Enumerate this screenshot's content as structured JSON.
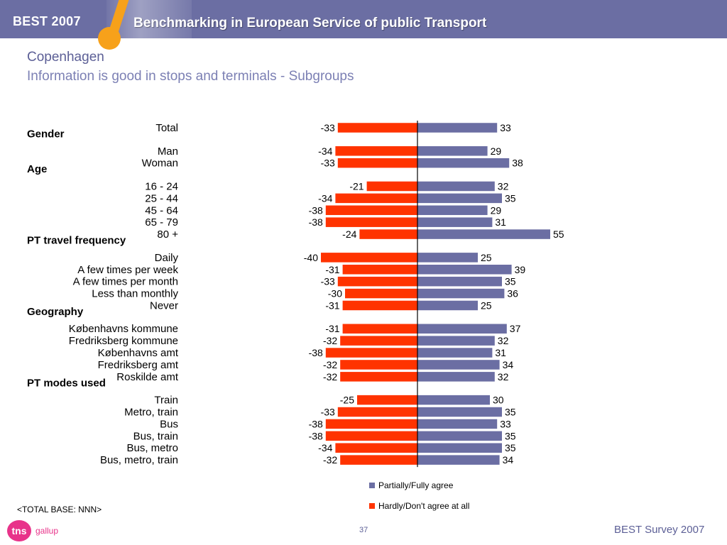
{
  "header": {
    "brand": "BEST 2007",
    "subtitle": "Benchmarking in European Service of public Transport"
  },
  "slide": {
    "title": "Copenhagen",
    "subtitle": "Information is good in stops and terminals - Subgroups"
  },
  "chart_data": {
    "type": "bar",
    "orientation": "horizontal-diverging",
    "grid": false,
    "series": [
      {
        "name": "Partially/Fully agree",
        "color": "#6b6ea3"
      },
      {
        "name": "Hardly/Don't agree at all",
        "color": "#ff3300"
      }
    ],
    "legend_position": "bottom",
    "groups": [
      {
        "label": "",
        "rows": [
          {
            "label": "Total",
            "neg": -33,
            "pos": 33
          }
        ]
      },
      {
        "label": "Gender",
        "rows": [
          {
            "label": "Man",
            "neg": -34,
            "pos": 29
          },
          {
            "label": "Woman",
            "neg": -33,
            "pos": 38
          }
        ]
      },
      {
        "label": "Age",
        "rows": [
          {
            "label": "16 - 24",
            "neg": -21,
            "pos": 32
          },
          {
            "label": "25 - 44",
            "neg": -34,
            "pos": 35
          },
          {
            "label": "45 - 64",
            "neg": -38,
            "pos": 29
          },
          {
            "label": "65 - 79",
            "neg": -38,
            "pos": 31
          },
          {
            "label": "80 +",
            "neg": -24,
            "pos": 55
          }
        ]
      },
      {
        "label": "PT travel frequency",
        "rows": [
          {
            "label": "Daily",
            "neg": -40,
            "pos": 25
          },
          {
            "label": "A few times per week",
            "neg": -31,
            "pos": 39
          },
          {
            "label": "A few times per month",
            "neg": -33,
            "pos": 35
          },
          {
            "label": "Less than monthly",
            "neg": -30,
            "pos": 36
          },
          {
            "label": "Never",
            "neg": -31,
            "pos": 25
          }
        ]
      },
      {
        "label": "Geography",
        "rows": [
          {
            "label": "Københavns kommune",
            "neg": -31,
            "pos": 37
          },
          {
            "label": "Fredriksberg kommune",
            "neg": -32,
            "pos": 32
          },
          {
            "label": "Københavns amt",
            "neg": -38,
            "pos": 31
          },
          {
            "label": "Fredriksberg amt",
            "neg": -32,
            "pos": 34
          },
          {
            "label": "Roskilde amt",
            "neg": -32,
            "pos": 32
          }
        ]
      },
      {
        "label": "PT modes used",
        "rows": [
          {
            "label": "Train",
            "neg": -25,
            "pos": 30
          },
          {
            "label": "Metro, train",
            "neg": -33,
            "pos": 35
          },
          {
            "label": "Bus",
            "neg": -38,
            "pos": 33
          },
          {
            "label": "Bus, train",
            "neg": -38,
            "pos": 35
          },
          {
            "label": "Bus, metro",
            "neg": -34,
            "pos": 35
          },
          {
            "label": "Bus, metro, train",
            "neg": -32,
            "pos": 34
          }
        ]
      }
    ]
  },
  "footer": {
    "total_base": "<TOTAL BASE: NNN>",
    "logo_text": "tns",
    "logo_sub": "gallup",
    "page_number": "37",
    "label": "BEST Survey 2007"
  }
}
